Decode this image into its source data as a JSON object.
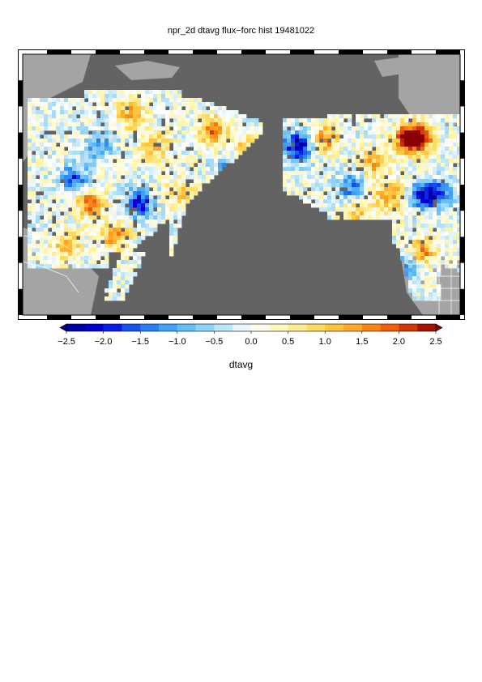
{
  "title": "npr_2d dtavg flux−forc hist 19481022",
  "colorbar": {
    "label": "dtavg",
    "ticks": [
      "−2.5",
      "−2.0",
      "−1.5",
      "−1.0",
      "−0.5",
      "0.0",
      "0.5",
      "1.0",
      "1.5",
      "2.0",
      "2.5"
    ],
    "min": -2.5,
    "max": 2.5,
    "colors": [
      "#00008b",
      "#0000e0",
      "#1e6ef0",
      "#50b4f5",
      "#a6dcf7",
      "#ffffff",
      "#fff5a8",
      "#ffd24a",
      "#ff9a1e",
      "#e84a0a",
      "#8b0000"
    ]
  },
  "map": {
    "ocean_color": "#636363",
    "land_color": "#a4a4a4",
    "border_color": "#ffffff"
  }
}
